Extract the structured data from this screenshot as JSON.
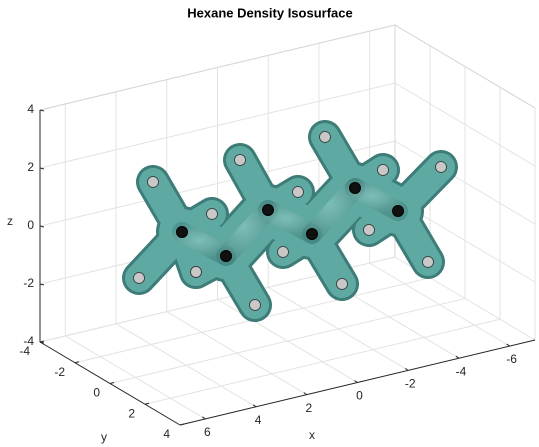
{
  "chart_data": {
    "type": "isosurface3d",
    "title": "Hexane Density Isosurface",
    "xlabel": "x",
    "ylabel": "y",
    "zlabel": "z",
    "xlim": [
      -7,
      7
    ],
    "ylim": [
      -4,
      4
    ],
    "zlim": [
      -4,
      4
    ],
    "xticks": [
      -6,
      -4,
      -2,
      0,
      2,
      4,
      6
    ],
    "yticks": [
      -4,
      -2,
      0,
      2,
      4
    ],
    "zticks": [
      -4,
      -2,
      0,
      2,
      4
    ],
    "grid": true,
    "surface_color": "#5fa9a3"
  }
}
